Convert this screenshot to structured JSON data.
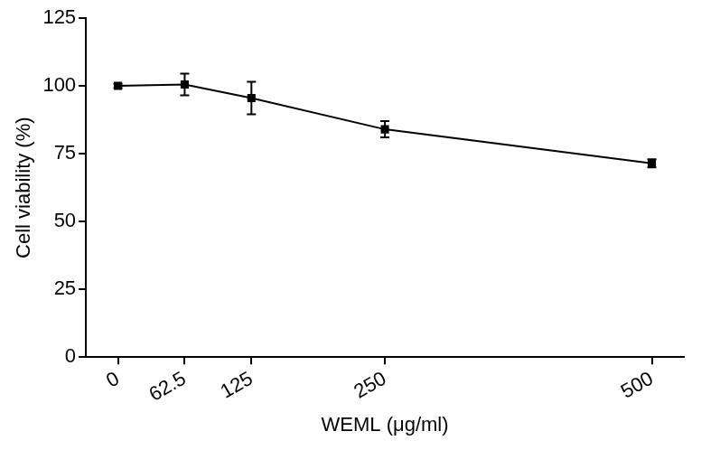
{
  "chart_data": {
    "type": "line",
    "x_label": "WEML (μg/ml)",
    "y_label": "Cell viability (%)",
    "x": [
      0,
      62.5,
      125,
      250,
      500
    ],
    "values": [
      100,
      100.5,
      95.5,
      84,
      71.5
    ],
    "errors": [
      0.8,
      4,
      6,
      3,
      1.5
    ],
    "color": "#000000",
    "marker": "square",
    "xlim": [
      -30,
      530
    ],
    "xticks": [
      0,
      62.5,
      125,
      250,
      500
    ],
    "ylim": [
      0,
      125
    ],
    "yticks": [
      0,
      25,
      50,
      75,
      100,
      125
    ],
    "grid": false
  }
}
